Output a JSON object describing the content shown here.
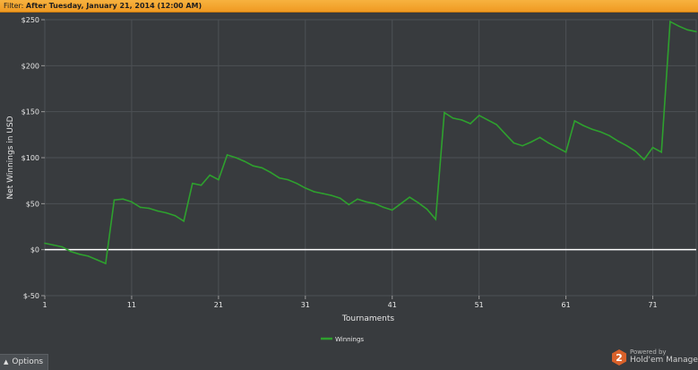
{
  "filter": {
    "label": "Filter: ",
    "value": "After Tuesday, January 21, 2014 (12:00 AM)"
  },
  "options": {
    "label": "Options"
  },
  "branding": {
    "powered_by": "Powered by",
    "brand": "Hold'em Manager",
    "badge": "2"
  },
  "colors": {
    "background": "#383b3e",
    "grid": "#4d5155",
    "series": "#2ea12e",
    "zero_line": "#ffffff",
    "filter_bar": "#f3a52e"
  },
  "chart_data": {
    "type": "line",
    "title": "",
    "xlabel": "Tournaments",
    "ylabel": "Net Winnings in USD",
    "xlim": [
      1,
      76
    ],
    "ylim": [
      -50,
      250
    ],
    "x_ticks": [
      1,
      11,
      21,
      31,
      41,
      51,
      61,
      71
    ],
    "y_ticks": [
      -50,
      0,
      50,
      100,
      150,
      200,
      250
    ],
    "y_tick_labels": [
      "$-50",
      "$0",
      "$50",
      "$100",
      "$150",
      "$200",
      "$250"
    ],
    "grid": true,
    "legend_position": "bottom-center",
    "series": [
      {
        "name": "Winnings",
        "x": [
          1,
          2,
          3,
          4,
          5,
          6,
          7,
          8,
          9,
          10,
          11,
          12,
          13,
          14,
          15,
          16,
          17,
          18,
          19,
          20,
          21,
          22,
          23,
          24,
          25,
          26,
          27,
          28,
          29,
          30,
          31,
          32,
          33,
          34,
          35,
          36,
          37,
          38,
          39,
          40,
          41,
          42,
          43,
          44,
          45,
          46,
          47,
          48,
          49,
          50,
          51,
          52,
          53,
          54,
          55,
          56,
          57,
          58,
          59,
          60,
          61,
          62,
          63,
          64,
          65,
          66,
          67,
          68,
          69,
          70,
          71,
          72,
          73,
          74,
          75,
          76
        ],
        "y": [
          7,
          5,
          3,
          -2,
          -5,
          -7,
          -11,
          -15,
          54,
          55,
          52,
          46,
          45,
          42,
          40,
          37,
          31,
          72,
          70,
          81,
          76,
          103,
          100,
          96,
          91,
          89,
          84,
          78,
          76,
          72,
          67,
          63,
          61,
          59,
          56,
          49,
          55,
          52,
          50,
          46,
          43,
          50,
          57,
          51,
          44,
          33,
          149,
          143,
          141,
          137,
          146,
          141,
          136,
          126,
          116,
          113,
          117,
          122,
          116,
          111,
          106,
          140,
          135,
          131,
          128,
          124,
          118,
          113,
          107,
          98,
          111,
          106,
          248,
          243,
          239,
          237
        ]
      }
    ]
  }
}
